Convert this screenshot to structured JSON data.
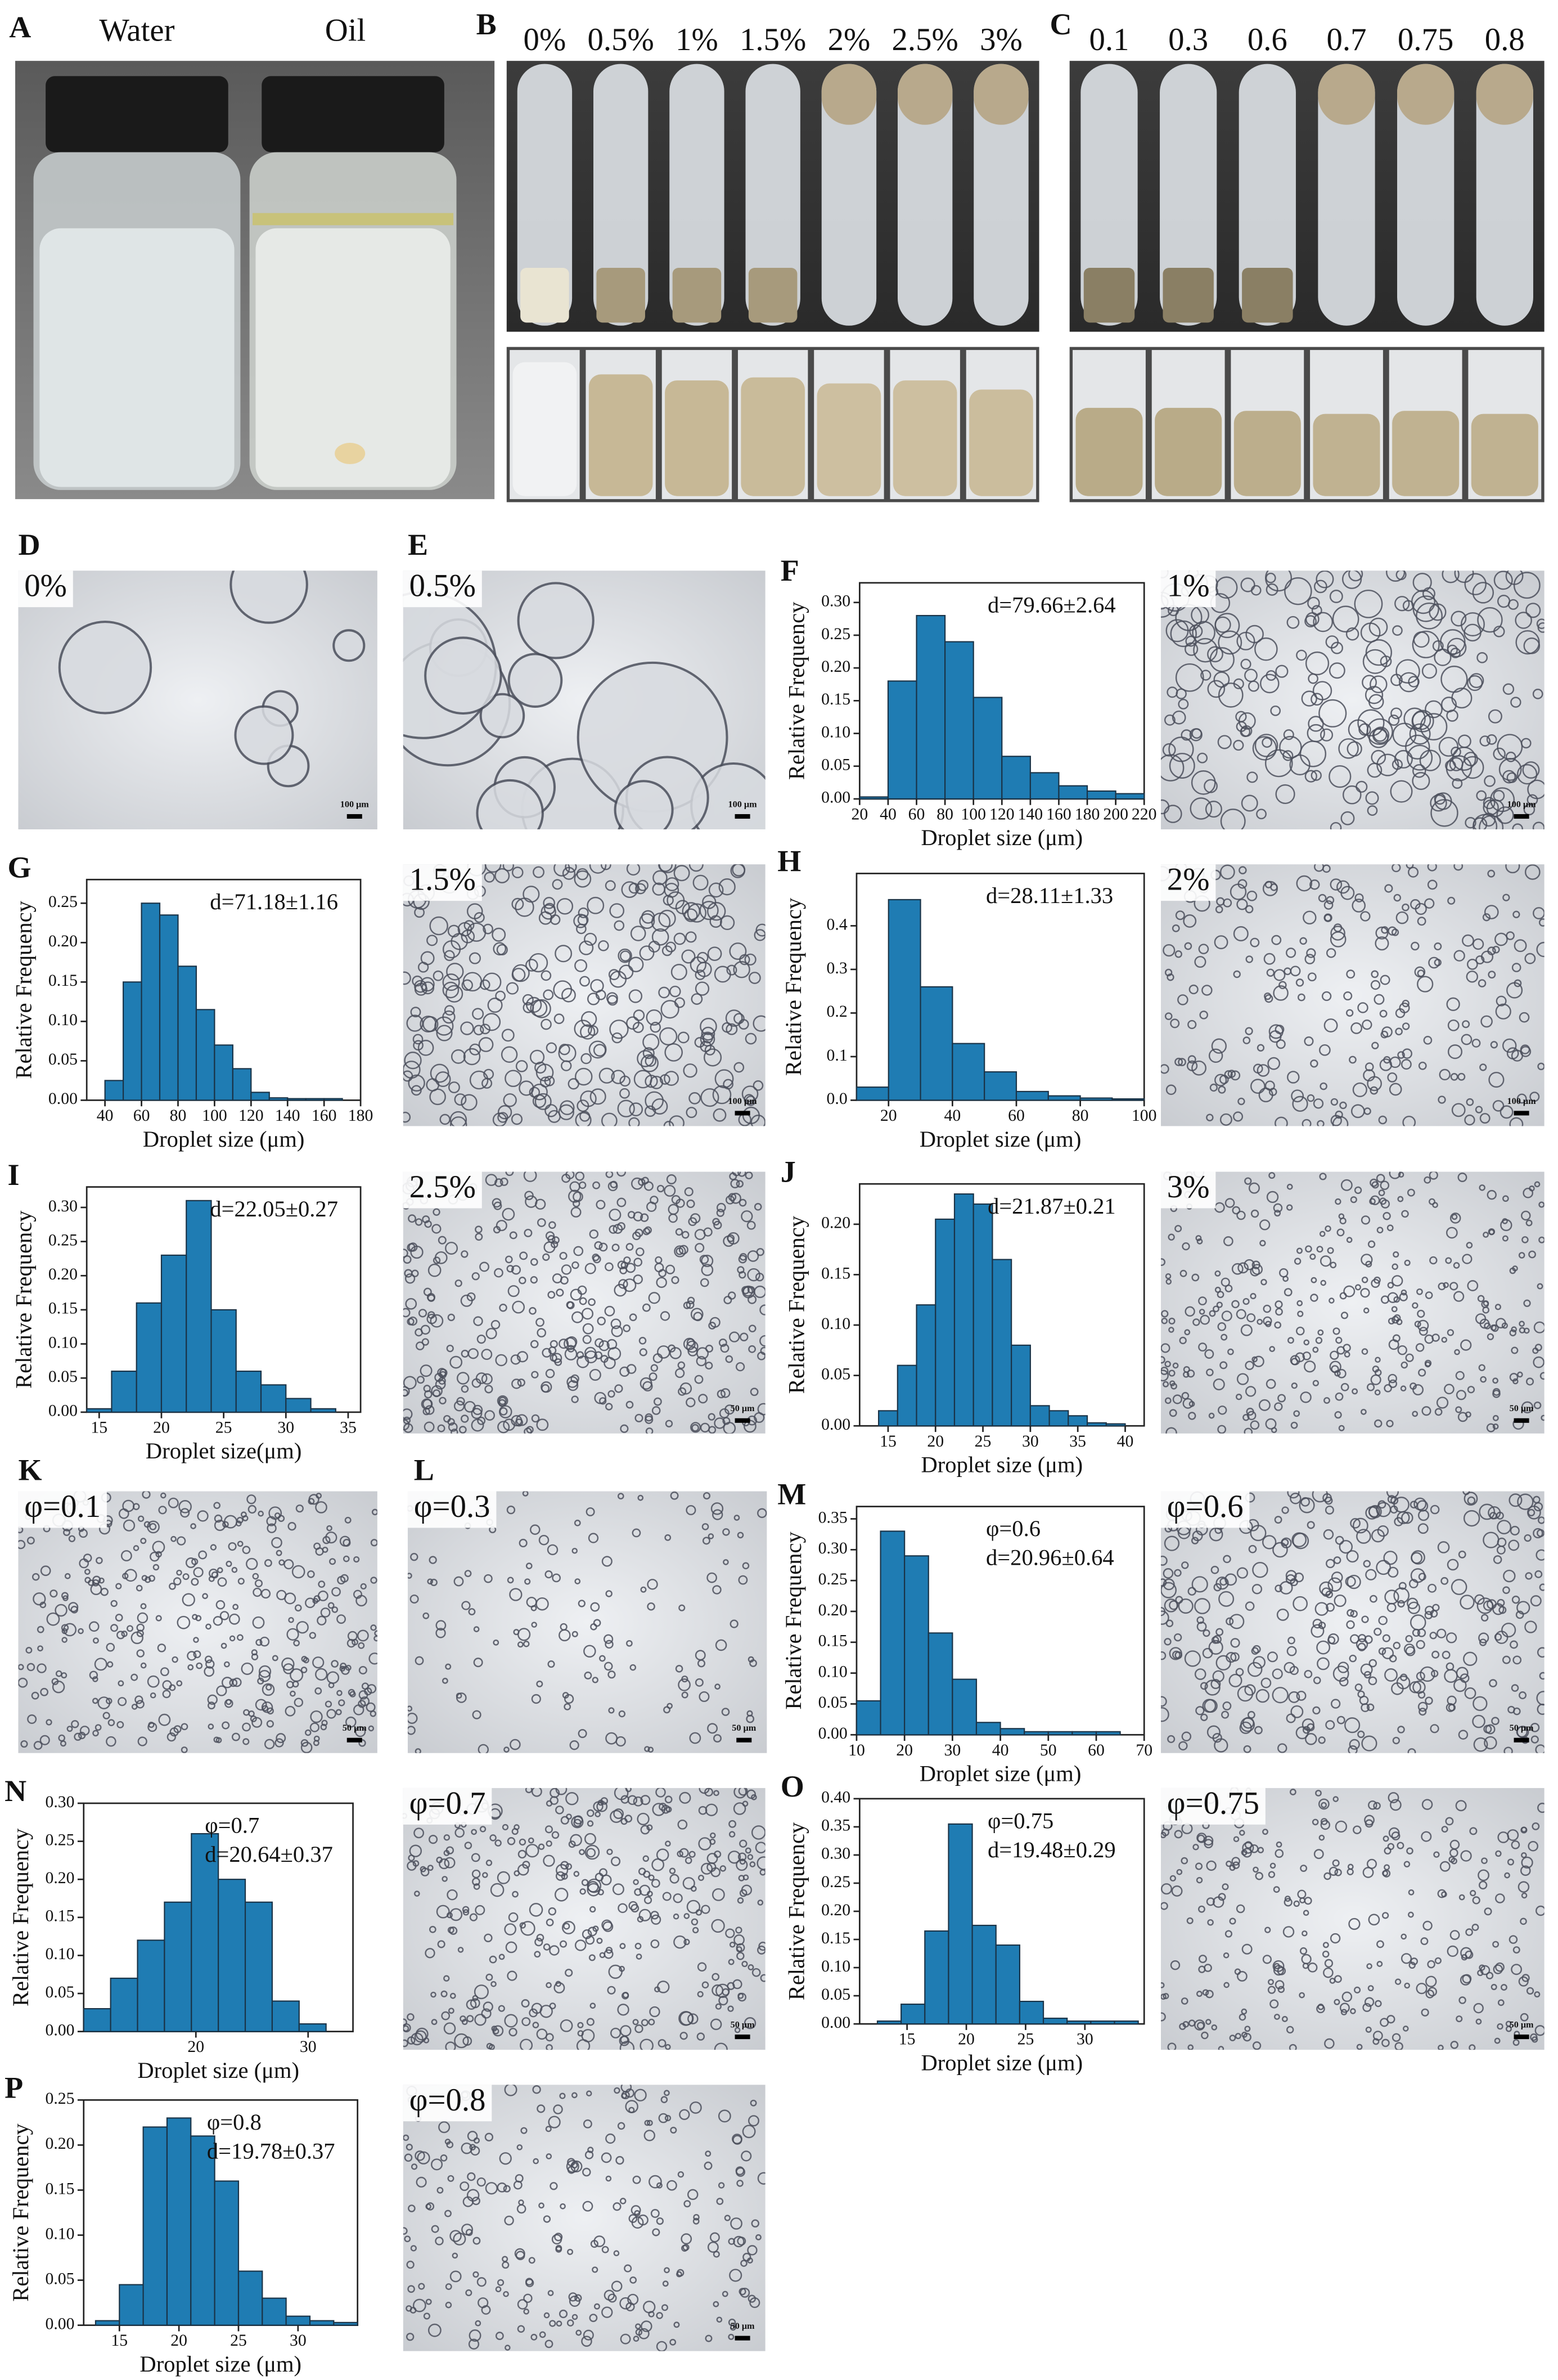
{
  "photo_panels": [
    {
      "letter": "A",
      "labels": [
        "Water",
        "Oil"
      ]
    },
    {
      "letter": "B",
      "labels": [
        "0%",
        "0.5%",
        "1%",
        "1.5%",
        "2%",
        "2.5%",
        "3%"
      ]
    },
    {
      "letter": "C",
      "labels": [
        "0.1",
        "0.3",
        "0.6",
        "0.7",
        "0.75",
        "0.8"
      ]
    }
  ],
  "micrographs": [
    {
      "letter": "D",
      "label": "0%",
      "scale": "100 μm"
    },
    {
      "letter": "E",
      "label": "0.5%",
      "scale": "100 μm"
    },
    {
      "label": "1%",
      "scale": "100 μm"
    },
    {
      "label": "1.5%",
      "scale": "100 μm"
    },
    {
      "label": "2%",
      "scale": "100 μm"
    },
    {
      "label": "2.5%",
      "scale": "50 μm"
    },
    {
      "label": "3%",
      "scale": "50 μm"
    },
    {
      "letter": "K",
      "label": "φ=0.1",
      "scale": "50 μm"
    },
    {
      "letter": "L",
      "label": "φ=0.3",
      "scale": "50 μm"
    },
    {
      "label": "φ=0.6",
      "scale": "50 μm"
    },
    {
      "label": "φ=0.7",
      "scale": "50 μm"
    },
    {
      "label": "φ=0.75",
      "scale": "50 μm"
    },
    {
      "label": "φ=0.8",
      "scale": "50 μm"
    }
  ],
  "chart_data": [
    {
      "type": "histogram",
      "panel": "F",
      "annotation": [
        "d=79.66±2.64"
      ],
      "xlabel": "Droplet size (μm)",
      "ylabel": "Relative Frequency",
      "color": "#1f7cb3",
      "bins": [
        20,
        40,
        60,
        80,
        100,
        120,
        140,
        160,
        180,
        200,
        220
      ],
      "values": [
        0.003,
        0.18,
        0.28,
        0.24,
        0.155,
        0.065,
        0.04,
        0.02,
        0.012,
        0.008
      ],
      "xlim": [
        20,
        220
      ],
      "xticks": [
        20,
        40,
        60,
        80,
        100,
        120,
        140,
        160,
        180,
        200,
        220
      ],
      "ylim": [
        0,
        0.33
      ],
      "yticks": [
        {
          "value": 0,
          "label": "0.00"
        },
        0.05,
        {
          "value": 0.1,
          "label": "0.10"
        },
        0.15,
        {
          "value": 0.2,
          "label": "0.20"
        },
        0.25,
        {
          "value": 0.3,
          "label": "0.30"
        }
      ]
    },
    {
      "type": "histogram",
      "panel": "G",
      "annotation": [
        "d=71.18±1.16"
      ],
      "xlabel": "Droplet size (μm)",
      "ylabel": "Relative Frequency",
      "color": "#1f7cb3",
      "bins": [
        40,
        50,
        60,
        70,
        80,
        90,
        100,
        110,
        120,
        130,
        140,
        150,
        160,
        170
      ],
      "values": [
        0.025,
        0.15,
        0.25,
        0.235,
        0.17,
        0.115,
        0.07,
        0.04,
        0.01,
        0.003,
        0.002,
        0.002,
        0.002
      ],
      "xlim": [
        30,
        180
      ],
      "xticks": [
        40,
        60,
        80,
        100,
        120,
        140,
        160,
        180
      ],
      "ylim": [
        0,
        0.28
      ],
      "yticks": [
        {
          "value": 0,
          "label": "0.00"
        },
        0.05,
        {
          "value": 0.1,
          "label": "0.10"
        },
        0.15,
        {
          "value": 0.2,
          "label": "0.20"
        },
        0.25
      ]
    },
    {
      "type": "histogram",
      "panel": "H",
      "annotation": [
        "d=28.11±1.33"
      ],
      "xlabel": "Droplet size (μm)",
      "ylabel": "Relative Frequency",
      "color": "#1f7cb3",
      "bins": [
        10,
        20,
        30,
        40,
        50,
        60,
        70,
        80,
        90,
        100
      ],
      "values": [
        0.03,
        0.46,
        0.26,
        0.13,
        0.065,
        0.02,
        0.01,
        0.005,
        0.003
      ],
      "xlim": [
        10,
        100
      ],
      "xticks": [
        20,
        40,
        60,
        80,
        100
      ],
      "ylim": [
        0,
        0.52
      ],
      "yticks": [
        {
          "value": 0,
          "label": "0.0"
        },
        0.1,
        0.2,
        0.3,
        0.4
      ]
    },
    {
      "type": "histogram",
      "panel": "I",
      "annotation": [
        "d=22.05±0.27"
      ],
      "xlabel": "Droplet size(μm)",
      "ylabel": "Relative Frequency",
      "color": "#1f7cb3",
      "bins": [
        14,
        16,
        18,
        20,
        22,
        24,
        26,
        28,
        30,
        32,
        34
      ],
      "values": [
        0.005,
        0.06,
        0.16,
        0.23,
        0.31,
        0.15,
        0.06,
        0.04,
        0.02,
        0.005
      ],
      "xlim": [
        14,
        36
      ],
      "xticks": [
        15,
        20,
        25,
        30,
        35
      ],
      "ylim": [
        0,
        0.33
      ],
      "yticks": [
        {
          "value": 0,
          "label": "0.00"
        },
        0.05,
        {
          "value": 0.1,
          "label": "0.10"
        },
        0.15,
        {
          "value": 0.2,
          "label": "0.20"
        },
        0.25,
        {
          "value": 0.3,
          "label": "0.30"
        }
      ]
    },
    {
      "type": "histogram",
      "panel": "J",
      "annotation": [
        "d=21.87±0.21"
      ],
      "xlabel": "Droplet size (μm)",
      "ylabel": "Relative Frequency",
      "color": "#1f7cb3",
      "bins": [
        14,
        16,
        18,
        20,
        22,
        24,
        26,
        28,
        30,
        32,
        34,
        36,
        38,
        40
      ],
      "values": [
        0.015,
        0.06,
        0.12,
        0.205,
        0.23,
        0.22,
        0.165,
        0.08,
        0.02,
        0.015,
        0.01,
        0.003,
        0.002
      ],
      "xlim": [
        12,
        42
      ],
      "xticks": [
        15,
        20,
        25,
        30,
        35,
        40
      ],
      "ylim": [
        0,
        0.24
      ],
      "yticks": [
        {
          "value": 0,
          "label": "0.00"
        },
        0.05,
        {
          "value": 0.1,
          "label": "0.10"
        },
        0.15,
        {
          "value": 0.2,
          "label": "0.20"
        }
      ]
    },
    {
      "type": "histogram",
      "panel": "M",
      "annotation": [
        "φ=0.6",
        "d=20.96±0.64"
      ],
      "xlabel": "Droplet size (μm)",
      "ylabel": "Relative Frequency",
      "color": "#1f7cb3",
      "bins": [
        10,
        15,
        20,
        25,
        30,
        35,
        40,
        45,
        50,
        55,
        60,
        65
      ],
      "values": [
        0.055,
        0.33,
        0.29,
        0.165,
        0.09,
        0.02,
        0.01,
        0.005,
        0.005,
        0.005,
        0.005
      ],
      "xlim": [
        10,
        70
      ],
      "xticks": [
        10,
        20,
        30,
        40,
        50,
        60,
        70
      ],
      "ylim": [
        0,
        0.37
      ],
      "yticks": [
        {
          "value": 0,
          "label": "0.00"
        },
        0.05,
        {
          "value": 0.1,
          "label": "0.10"
        },
        0.15,
        {
          "value": 0.2,
          "label": "0.20"
        },
        0.25,
        {
          "value": 0.3,
          "label": "0.30"
        },
        0.35
      ]
    },
    {
      "type": "histogram",
      "panel": "N",
      "annotation": [
        "φ=0.7",
        "d=20.64±0.37"
      ],
      "xlabel": "Droplet size (μm)",
      "ylabel": "Relative Frequency",
      "color": "#1f7cb3",
      "bins": [
        10,
        12.4,
        14.8,
        17.2,
        19.6,
        22,
        24.4,
        26.8,
        29.2,
        31.6
      ],
      "values": [
        0.03,
        0.07,
        0.12,
        0.17,
        0.26,
        0.2,
        0.17,
        0.04,
        0.01
      ],
      "xlim": [
        10,
        34
      ],
      "xticks": [
        20,
        30
      ],
      "ylim": [
        0,
        0.3
      ],
      "yticks": [
        {
          "value": 0,
          "label": "0.00"
        },
        0.05,
        {
          "value": 0.1,
          "label": "0.10"
        },
        0.15,
        {
          "value": 0.2,
          "label": "0.20"
        },
        0.25,
        {
          "value": 0.3,
          "label": "0.30"
        }
      ]
    },
    {
      "type": "histogram",
      "panel": "O",
      "annotation": [
        "φ=0.75",
        "d=19.48±0.29"
      ],
      "xlabel": "Droplet size (μm)",
      "ylabel": "Relative Frequency",
      "color": "#1f7cb3",
      "bins": [
        12.5,
        14.5,
        16.5,
        18.5,
        20.5,
        22.5,
        24.5,
        26.5,
        28.5,
        30.5,
        32.5,
        34.5
      ],
      "values": [
        0.005,
        0.035,
        0.165,
        0.355,
        0.175,
        0.14,
        0.04,
        0.01,
        0.005,
        0.005,
        0.005
      ],
      "xlim": [
        11,
        35
      ],
      "xticks": [
        15,
        20,
        25,
        30
      ],
      "ylim": [
        0,
        0.4
      ],
      "yticks": [
        {
          "value": 0,
          "label": "0.00"
        },
        0.05,
        {
          "value": 0.1,
          "label": "0.10"
        },
        0.15,
        {
          "value": 0.2,
          "label": "0.20"
        },
        0.25,
        {
          "value": 0.3,
          "label": "0.30"
        },
        0.35,
        {
          "value": 0.4,
          "label": "0.40"
        }
      ]
    },
    {
      "type": "histogram",
      "panel": "P",
      "annotation": [
        "φ=0.8",
        "d=19.78±0.37"
      ],
      "xlabel": "Droplet size (μm)",
      "ylabel": "Relative Frequency",
      "color": "#1f7cb3",
      "bins": [
        13,
        15,
        17,
        19,
        21,
        23,
        25,
        27,
        29,
        31,
        33,
        35
      ],
      "values": [
        0.005,
        0.045,
        0.22,
        0.23,
        0.21,
        0.16,
        0.06,
        0.03,
        0.01,
        0.005,
        0.003
      ],
      "xlim": [
        12,
        35
      ],
      "xticks": [
        15,
        20,
        25,
        30
      ],
      "ylim": [
        0,
        0.25
      ],
      "yticks": [
        {
          "value": 0,
          "label": "0.00"
        },
        0.05,
        {
          "value": 0.1,
          "label": "0.10"
        },
        0.15,
        {
          "value": 0.2,
          "label": "0.20"
        },
        0.25
      ]
    }
  ]
}
